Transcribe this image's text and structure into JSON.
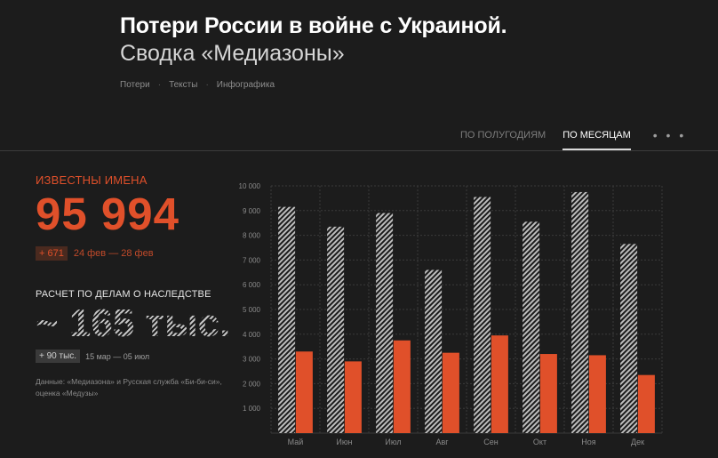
{
  "header": {
    "title": "Потери России в войне с Украиной.",
    "subtitle": "Сводка «Медиазоны»",
    "breadcrumb": [
      "Потери",
      "Тексты",
      "Инфографика"
    ]
  },
  "tabs": {
    "items": [
      "ПО ПОЛУГОДИЯМ",
      "ПО МЕСЯЦАМ"
    ],
    "active": 1,
    "more": "• • •"
  },
  "stats": {
    "known_label": "ИЗВЕСТНЫ ИМЕНА",
    "known_value": "95 994",
    "known_delta": "+ 671",
    "known_period": "24 фев — 28 фев",
    "calc_label": "РАСЧЕТ ПО ДЕЛАМ О НАСЛЕДСТВЕ",
    "calc_value": "~ 165 тыс.",
    "calc_delta": "+ 90 тыс.",
    "calc_period": "15 мар — 05 июл",
    "source": "Данные: «Медиазона» и Русская служба «Би-би-си», оценка «Медузы»"
  },
  "colors": {
    "accent": "#e0502a",
    "background": "#1c1c1c",
    "hatched": "#bdbdbd"
  },
  "chart_data": {
    "type": "bar",
    "categories": [
      "Май",
      "Июн",
      "Июл",
      "Авг",
      "Сен",
      "Окт",
      "Ноя",
      "Дек"
    ],
    "series": [
      {
        "values": [
          9150,
          8350,
          8900,
          6600,
          9550,
          8550,
          9750,
          7650
        ],
        "style": "hatched"
      },
      {
        "values": [
          3300,
          2900,
          3750,
          3250,
          3950,
          3200,
          3150,
          2350
        ],
        "style": "solid"
      }
    ],
    "y_ticks": [
      "10 000",
      "9 000",
      "8 000",
      "7 000",
      "6 000",
      "5 000",
      "4 000",
      "3 000",
      "2 000",
      "1 000"
    ],
    "ylim": [
      0,
      10000
    ],
    "grid": true
  }
}
